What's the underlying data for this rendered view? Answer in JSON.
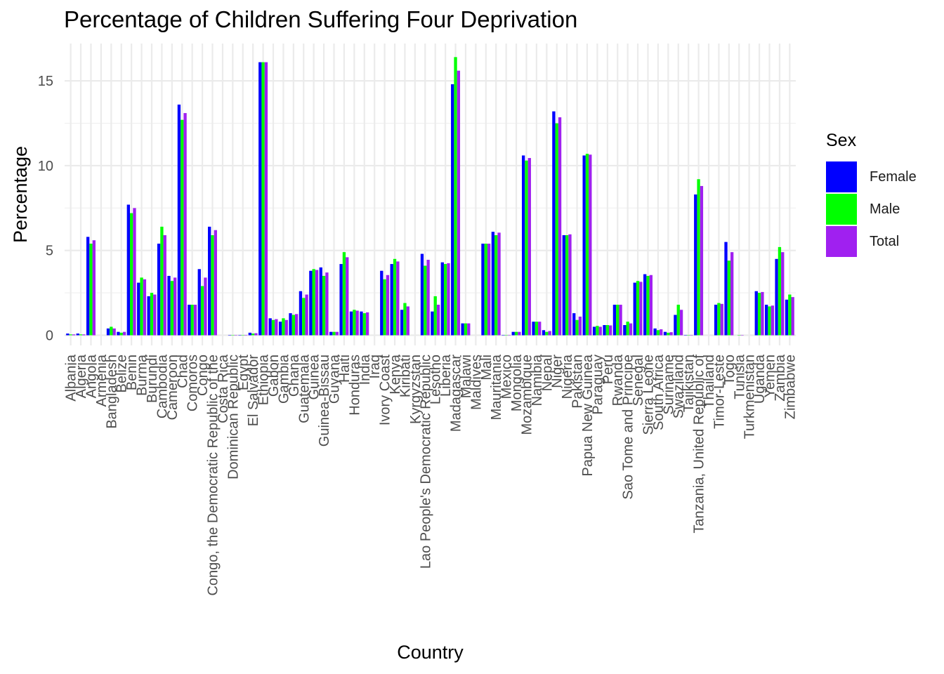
{
  "chart_data": {
    "type": "bar",
    "title": "Percentage of Children Suffering Four Deprivation",
    "xlabel": "Country",
    "ylabel": "Percentage",
    "ylim": [
      -0.6,
      17.2
    ],
    "yticks": [
      0,
      5,
      10,
      15
    ],
    "grid": true,
    "legend": {
      "title": "Sex",
      "position": "right"
    },
    "categories": [
      "Albania",
      "Algeria",
      "Angola",
      "Armenia",
      "Bangladesh",
      "Belize",
      "Benin",
      "Burma",
      "Burundi",
      "Cambodia",
      "Cameroon",
      "Chad",
      "Comoros",
      "Congo",
      "Congo, the Democratic Republic of the",
      "Costa Rica",
      "Dominican Republic",
      "Egypt",
      "El Salvador",
      "Ethiopia",
      "Gabon",
      "Gambia",
      "Ghana",
      "Guatemala",
      "Guinea",
      "Guinea-Bissau",
      "Guyana",
      "Haiti",
      "Honduras",
      "India",
      "Iraq",
      "Ivory Coast",
      "Kenya",
      "Kiribati",
      "Kyrgyzstan",
      "Lao People's Democratic Republic",
      "Lesotho",
      "Liberia",
      "Madagascar",
      "Malawi",
      "Maldives",
      "Mali",
      "Mauritania",
      "Mexico",
      "Mongolia",
      "Mozambique",
      "Namibia",
      "Nepal",
      "Niger",
      "Nigeria",
      "Pakistan",
      "Papua New Guinea",
      "Paraguay",
      "Peru",
      "Rwanda",
      "Sao Tome and Principe",
      "Senegal",
      "Sierra Leone",
      "South Africa",
      "Suriname",
      "Swaziland",
      "Tajikistan",
      "Tanzania, United Republic of",
      "Thailand",
      "Timor-Leste",
      "Togo",
      "Tunisia",
      "Turkmenistan",
      "Uganda",
      "Yemen",
      "Zambia",
      "Zimbabwe"
    ],
    "series": [
      {
        "name": "Female",
        "color": "#0000ff",
        "values": [
          0.1,
          0.1,
          5.8,
          0,
          0.4,
          0.2,
          7.7,
          3.1,
          2.3,
          5.4,
          3.5,
          13.6,
          1.8,
          3.9,
          6.4,
          0,
          0.02,
          0.02,
          0.15,
          16.1,
          1.0,
          0.8,
          1.3,
          2.6,
          3.8,
          4.0,
          0.2,
          4.2,
          1.4,
          1.4,
          0,
          3.8,
          4.2,
          1.5,
          0,
          4.8,
          1.4,
          4.3,
          14.8,
          0.7,
          0,
          5.4,
          6.1,
          0.02,
          0.2,
          10.6,
          0.8,
          0.3,
          13.2,
          5.9,
          1.3,
          10.6,
          0.5,
          0.6,
          1.8,
          0.6,
          3.1,
          3.6,
          0.4,
          0.2,
          1.2,
          0.02,
          8.3,
          0,
          1.8,
          5.5,
          0,
          0,
          2.6,
          1.8,
          4.5,
          2.1
        ]
      },
      {
        "name": "Male",
        "color": "#00ff00",
        "values": [
          0.05,
          0.05,
          5.4,
          0,
          0.5,
          0.15,
          7.2,
          3.4,
          2.5,
          6.4,
          3.2,
          12.7,
          1.8,
          2.9,
          5.9,
          0,
          0.02,
          0.02,
          0.1,
          16.1,
          0.9,
          1.0,
          1.2,
          2.2,
          3.9,
          3.5,
          0.2,
          4.9,
          1.5,
          1.3,
          0,
          3.3,
          4.5,
          1.9,
          0,
          4.1,
          2.3,
          4.2,
          16.4,
          0.7,
          0,
          5.4,
          5.9,
          0.02,
          0.2,
          10.3,
          0.8,
          0.2,
          12.5,
          5.9,
          0.9,
          10.7,
          0.55,
          0.6,
          1.8,
          0.8,
          3.2,
          3.5,
          0.3,
          0.15,
          1.8,
          0.02,
          9.2,
          0,
          1.9,
          4.4,
          0.02,
          0,
          2.5,
          1.7,
          5.2,
          2.4
        ]
      },
      {
        "name": "Total",
        "color": "#a020f0",
        "values": [
          0.05,
          0.05,
          5.6,
          0,
          0.4,
          0.2,
          7.5,
          3.3,
          2.4,
          5.9,
          3.4,
          13.1,
          1.8,
          3.4,
          6.2,
          0,
          0.02,
          0.02,
          0.12,
          16.1,
          0.95,
          0.9,
          1.25,
          2.4,
          3.85,
          3.7,
          0.2,
          4.6,
          1.45,
          1.35,
          0,
          3.55,
          4.35,
          1.7,
          0,
          4.45,
          1.8,
          4.25,
          15.6,
          0.7,
          0,
          5.4,
          6.05,
          0.02,
          0.2,
          10.45,
          0.8,
          0.25,
          12.85,
          5.95,
          1.1,
          10.65,
          0.5,
          0.58,
          1.8,
          0.7,
          3.15,
          3.55,
          0.35,
          0.18,
          1.5,
          0.02,
          8.8,
          0,
          1.85,
          4.9,
          0.01,
          0,
          2.55,
          1.75,
          4.9,
          2.25
        ]
      }
    ]
  }
}
